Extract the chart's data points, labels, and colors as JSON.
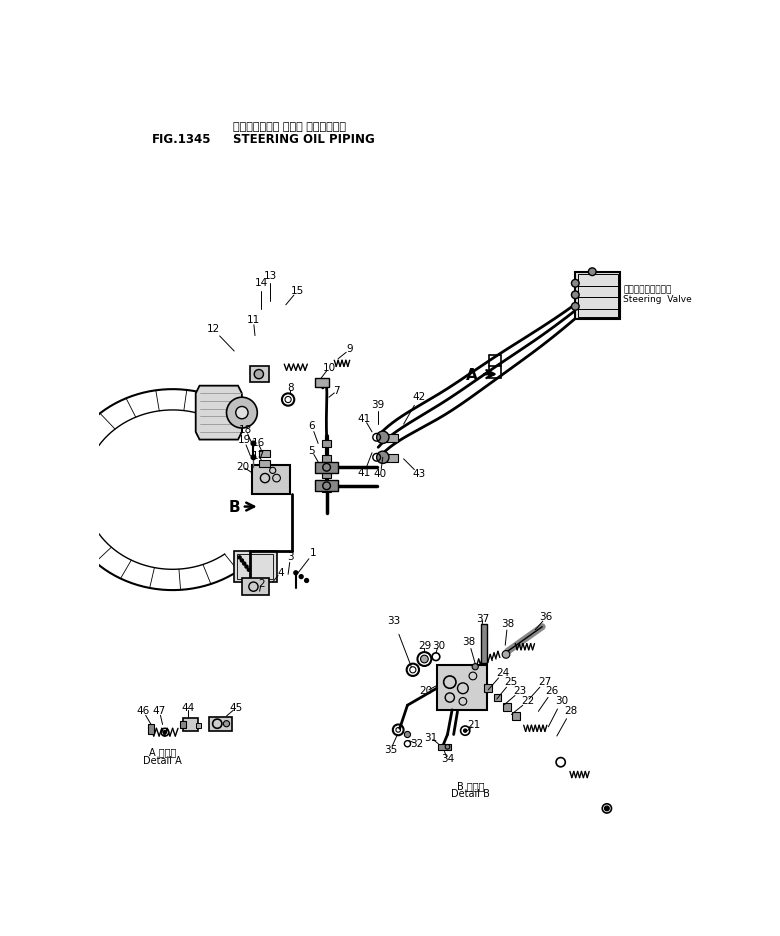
{
  "title_jp": "ステアリング・ オイル パイピング・",
  "title_en": "STEERING OIL PIPING",
  "fig_number": "FIG.1345",
  "background_color": "#ffffff",
  "steering_valve_jp": "ステアリングバルブ",
  "steering_valve_en": "Steering  Valve",
  "detail_a_jp": "A 拡大図",
  "detail_a_en": "Detail A",
  "detail_b_jp": "B 拡大図",
  "detail_b_en": "Detail B"
}
